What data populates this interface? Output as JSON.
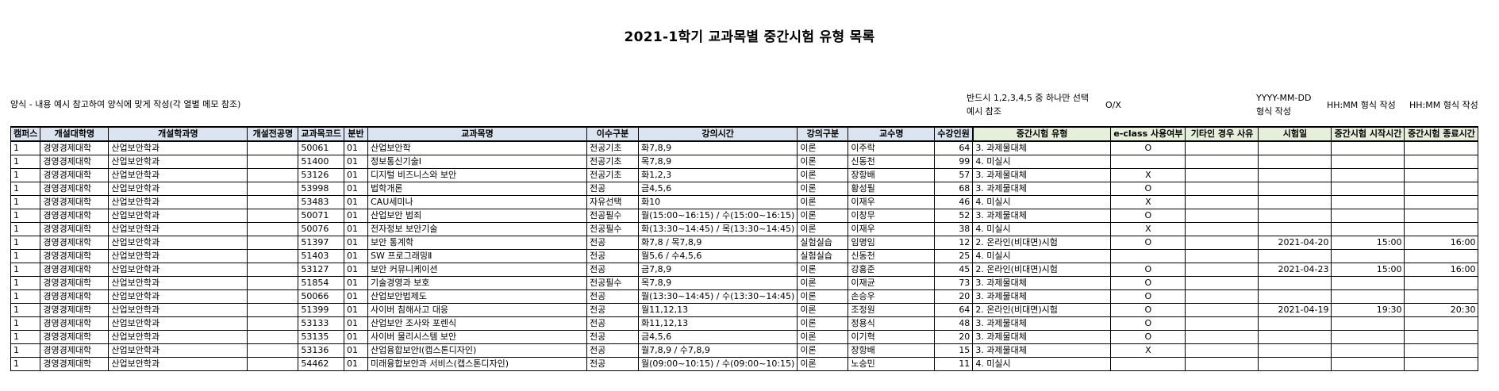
{
  "title": "2021-1학기 교과목별 중간시험 유형 목록",
  "notes": {
    "form_guide": "양식 - 내용 예시 참고하여 양식에 맞게 작성(각 열별 메모 참조)",
    "type_hint_1": "반드시 1,2,3,4,5 중 하나만 선택",
    "type_hint_2": "예시 참조",
    "eclass_hint": "O/X",
    "date_hint_1": "YYYY-MM-DD",
    "date_hint_2": "형식 작성",
    "start_hint": "HH:MM 형식 작성",
    "end_hint": "HH:MM 형식 작성"
  },
  "colors": {
    "header_blue": "#dbe4f1",
    "header_green": "#e6efd9"
  },
  "headers": [
    "캠퍼스",
    "개설대학명",
    "개설학과명",
    "개설전공명",
    "교과목코드",
    "분반",
    "교과목명",
    "이수구분",
    "강의시간",
    "강의구분",
    "교수명",
    "수강인원",
    "중간시험 유형",
    "e-class 사용여부",
    "기타인 경우 사유",
    "시험일",
    "중간시험 시작시간",
    "중간시험 종료시간"
  ],
  "rows": [
    [
      "1",
      "경영경제대학",
      "산업보안학과",
      "",
      "50061",
      "01",
      "산업보안학",
      "전공기초",
      "화7,8,9",
      "이론",
      "이주락",
      "64",
      "3. 과제물대체",
      "O",
      "",
      "",
      "",
      ""
    ],
    [
      "1",
      "경영경제대학",
      "산업보안학과",
      "",
      "51400",
      "01",
      "정보통신기술Ⅰ",
      "전공기초",
      "목7,8,9",
      "이론",
      "신동천",
      "99",
      "4. 미실시",
      "",
      "",
      "",
      "",
      ""
    ],
    [
      "1",
      "경영경제대학",
      "산업보안학과",
      "",
      "53126",
      "01",
      "디지털 비즈니스와 보안",
      "전공기초",
      "화1,2,3",
      "이론",
      "장항배",
      "57",
      "3. 과제물대체",
      "X",
      "",
      "",
      "",
      ""
    ],
    [
      "1",
      "경영경제대학",
      "산업보안학과",
      "",
      "53998",
      "01",
      "법학개론",
      "전공",
      "금4,5,6",
      "이론",
      "황성필",
      "68",
      "3. 과제물대체",
      "O",
      "",
      "",
      "",
      ""
    ],
    [
      "1",
      "경영경제대학",
      "산업보안학과",
      "",
      "53483",
      "01",
      "CAU세미나",
      "자유선택",
      "화10",
      "이론",
      "이재우",
      "46",
      "4. 미실시",
      "X",
      "",
      "",
      "",
      ""
    ],
    [
      "1",
      "경영경제대학",
      "산업보안학과",
      "",
      "50071",
      "01",
      "산업보안 범죄",
      "전공필수",
      "월(15:00~16:15) / 수(15:00~16:15)",
      "이론",
      "이창무",
      "52",
      "3. 과제물대체",
      "O",
      "",
      "",
      "",
      ""
    ],
    [
      "1",
      "경영경제대학",
      "산업보안학과",
      "",
      "50076",
      "01",
      "전자정보 보안기술",
      "전공필수",
      "화(13:30~14:45) / 목(13:30~14:45)",
      "이론",
      "이재우",
      "38",
      "4. 미실시",
      "X",
      "",
      "",
      "",
      ""
    ],
    [
      "1",
      "경영경제대학",
      "산업보안학과",
      "",
      "51397",
      "01",
      "보안 통계학",
      "전공",
      "화7,8 / 목7,8,9",
      "실험실습",
      "임명임",
      "12",
      "2. 온라인(비대면)시험",
      "O",
      "",
      "2021-04-20",
      "15:00",
      "16:00"
    ],
    [
      "1",
      "경영경제대학",
      "산업보안학과",
      "",
      "51403",
      "01",
      "SW 프로그래밍Ⅱ",
      "전공",
      "월5,6 / 수4,5,6",
      "실험실습",
      "신동천",
      "25",
      "4. 미실시",
      "",
      "",
      "",
      "",
      ""
    ],
    [
      "1",
      "경영경제대학",
      "산업보안학과",
      "",
      "53127",
      "01",
      "보안 커뮤니케이션",
      "전공",
      "금7,8,9",
      "이론",
      "강홍준",
      "45",
      "2. 온라인(비대면)시험",
      "O",
      "",
      "2021-04-23",
      "15:00",
      "16:00"
    ],
    [
      "1",
      "경영경제대학",
      "산업보안학과",
      "",
      "51854",
      "01",
      "기술경영과 보호",
      "전공필수",
      "목7,8,9",
      "이론",
      "이재균",
      "73",
      "3. 과제물대체",
      "O",
      "",
      "",
      "",
      ""
    ],
    [
      "1",
      "경영경제대학",
      "산업보안학과",
      "",
      "50066",
      "01",
      "산업보안법제도",
      "전공",
      "월(13:30~14:45) / 수(13:30~14:45)",
      "이론",
      "손승우",
      "20",
      "3. 과제물대체",
      "O",
      "",
      "",
      "",
      ""
    ],
    [
      "1",
      "경영경제대학",
      "산업보안학과",
      "",
      "51399",
      "01",
      "사이버 침해사고 대응",
      "전공",
      "월11,12,13",
      "이론",
      "조정원",
      "64",
      "2. 온라인(비대면)시험",
      "O",
      "",
      "2021-04-19",
      "19:30",
      "20:30"
    ],
    [
      "1",
      "경영경제대학",
      "산업보안학과",
      "",
      "53133",
      "01",
      "산업보안 조사와 포렌식",
      "전공",
      "화11,12,13",
      "이론",
      "정용식",
      "48",
      "3. 과제물대체",
      "O",
      "",
      "",
      "",
      ""
    ],
    [
      "1",
      "경영경제대학",
      "산업보안학과",
      "",
      "53135",
      "01",
      "사이버 물리시스템 보안",
      "전공",
      "금4,5,6",
      "이론",
      "이기혁",
      "20",
      "3. 과제물대체",
      "O",
      "",
      "",
      "",
      ""
    ],
    [
      "1",
      "경영경제대학",
      "산업보안학과",
      "",
      "53136",
      "01",
      "산업융합보안Ⅰ(캡스톤디자인)",
      "전공",
      "월7,8,9 / 수7,8,9",
      "이론",
      "장항배",
      "15",
      "3. 과제물대체",
      "X",
      "",
      "",
      "",
      ""
    ],
    [
      "1",
      "경영경제대학",
      "산업보안학과",
      "",
      "54462",
      "01",
      "미래융합보안과 서비스(캡스톤디자인)",
      "전공",
      "월(09:00~10:15) / 수(09:00~10:15)",
      "이론",
      "노승민",
      "11",
      "4. 미실시",
      "",
      "",
      "",
      "",
      ""
    ]
  ]
}
